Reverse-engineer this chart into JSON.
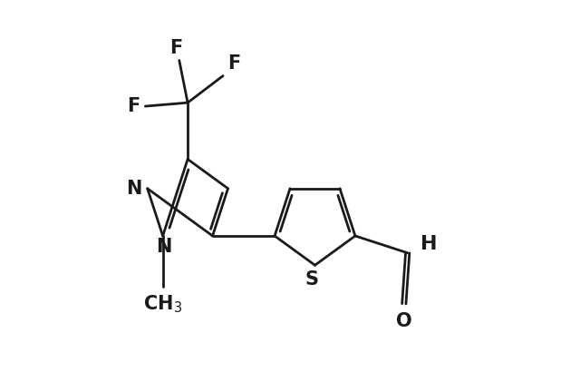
{
  "bg_color": "#ffffff",
  "line_color": "#1a1a1a",
  "line_width": 2.0,
  "font_size": 15,
  "font_weight": "bold",
  "figsize": [
    6.4,
    4.21
  ],
  "dpi": 100,
  "xlim": [
    0,
    8
  ],
  "ylim": [
    0.2,
    5.5
  ]
}
